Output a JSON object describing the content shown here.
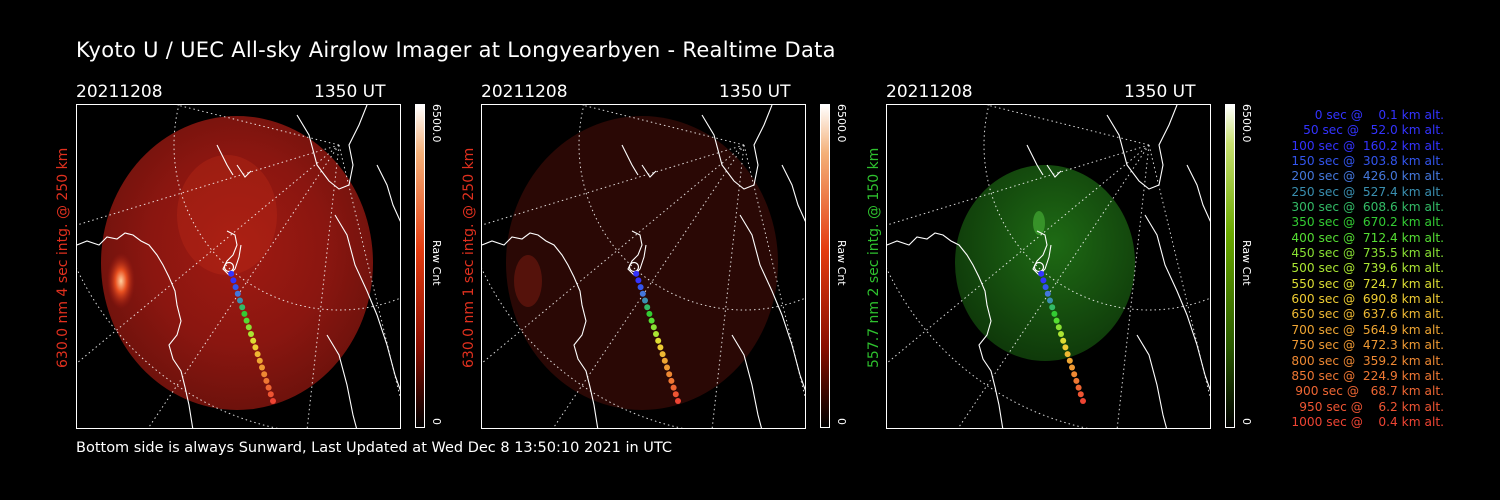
{
  "title": "Kyoto U / UEC All-sky Airglow Imager at Longyearbyen - Realtime Data",
  "footer": "Bottom side is always Sunward, Last Updated at Wed Dec  8 13:50:10 2021 in UTC",
  "panels": [
    {
      "date": "20211208",
      "time": "1350 UT",
      "label": "630.0 nm 4 sec intg. @ 250 km",
      "label_color": "#e0301e",
      "colorbar_max": "6500.0",
      "colorbar_min": "0",
      "colorbar_unit": "Raw Cnt",
      "colorbar_color": "#e43c10"
    },
    {
      "date": "20211208",
      "time": "1350 UT",
      "label": "630.0 nm 1 sec intg. @ 250 km",
      "label_color": "#e0301e",
      "colorbar_max": "6500.0",
      "colorbar_min": "0",
      "colorbar_unit": "Raw Cnt",
      "colorbar_color": "#e43c10"
    },
    {
      "date": "20211208",
      "time": "1350 UT",
      "label": "557.7 nm 2 sec intg. @ 150 km",
      "label_color": "#2ec02e",
      "colorbar_max": "6500.0",
      "colorbar_min": "0",
      "colorbar_unit": "Raw Cnt",
      "colorbar_color": "#4a9a00"
    }
  ],
  "legend": [
    {
      "text": "0 sec @    0.1 km alt.",
      "color": "#3333ff"
    },
    {
      "text": "50 sec @   52.0 km alt.",
      "color": "#3333ff"
    },
    {
      "text": "100 sec @  160.2 km alt.",
      "color": "#3333ff"
    },
    {
      "text": "150 sec @  303.8 km alt.",
      "color": "#3355ee"
    },
    {
      "text": "200 sec @  426.0 km alt.",
      "color": "#4477dd"
    },
    {
      "text": "250 sec @  527.4 km alt.",
      "color": "#3a8fb0"
    },
    {
      "text": "300 sec @  608.6 km alt.",
      "color": "#33bb66"
    },
    {
      "text": "350 sec @  670.2 km alt.",
      "color": "#33cc33"
    },
    {
      "text": "400 sec @  712.4 km alt.",
      "color": "#55dd33"
    },
    {
      "text": "450 sec @  735.5 km alt.",
      "color": "#88e033"
    },
    {
      "text": "500 sec @  739.6 km alt.",
      "color": "#aae633"
    },
    {
      "text": "550 sec @  724.7 km alt.",
      "color": "#dddd33"
    },
    {
      "text": "600 sec @  690.8 km alt.",
      "color": "#eecc33"
    },
    {
      "text": "650 sec @  637.6 km alt.",
      "color": "#eeb833"
    },
    {
      "text": "700 sec @  564.9 km alt.",
      "color": "#eea533"
    },
    {
      "text": "750 sec @  472.3 km alt.",
      "color": "#ee9933"
    },
    {
      "text": "800 sec @  359.2 km alt.",
      "color": "#ee8833"
    },
    {
      "text": "850 sec @  224.9 km alt.",
      "color": "#ee7733"
    },
    {
      "text": "900 sec @   68.7 km alt.",
      "color": "#ee6633"
    },
    {
      "text": "950 sec @    6.2 km alt.",
      "color": "#ee5533"
    },
    {
      "text": "1000 sec @    0.4 km alt.",
      "color": "#ee4433"
    }
  ]
}
